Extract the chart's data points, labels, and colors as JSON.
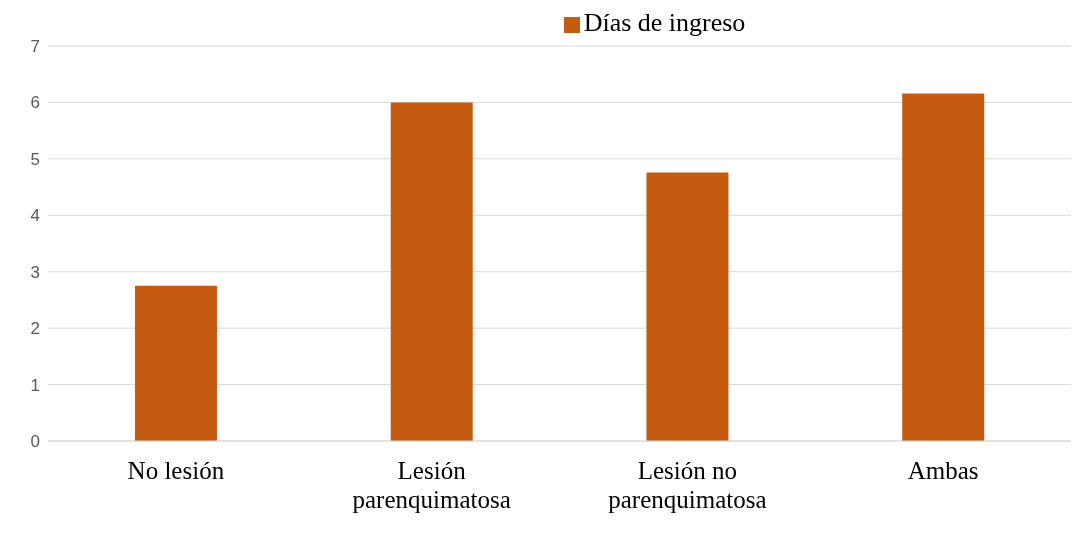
{
  "chart_data": {
    "type": "bar",
    "categories": [
      "No lesión",
      "Lesión parenquimatosa",
      "Lesión no parenquimatosa",
      "Ambas"
    ],
    "series": [
      {
        "name": "Días de ingreso",
        "color": "#c55a11",
        "values": [
          2.75,
          6.0,
          4.76,
          6.16
        ]
      }
    ],
    "ylim": [
      0,
      7
    ],
    "yticks": [
      0,
      1,
      2,
      3,
      4,
      5,
      6,
      7
    ],
    "grid": "y",
    "legend": "top"
  }
}
